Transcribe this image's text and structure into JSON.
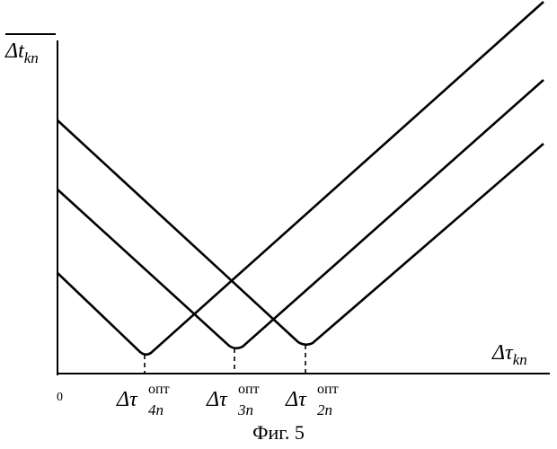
{
  "figure": {
    "caption": "Фиг. 5",
    "y_axis": {
      "symbol": "Δt",
      "subscript": "kn"
    },
    "x_axis": {
      "symbol": "Δτ",
      "subscript": "kn"
    },
    "origin_label": "0",
    "markers": [
      {
        "symbol": "Δτ",
        "superscript": "опт",
        "subscript": "4n"
      },
      {
        "symbol": "Δτ",
        "superscript": "опт",
        "subscript": "3n"
      },
      {
        "symbol": "Δτ",
        "superscript": "опт",
        "subscript": "2n"
      }
    ],
    "curves": [
      "curve-lower",
      "curve-middle",
      "curve-upper"
    ]
  }
}
